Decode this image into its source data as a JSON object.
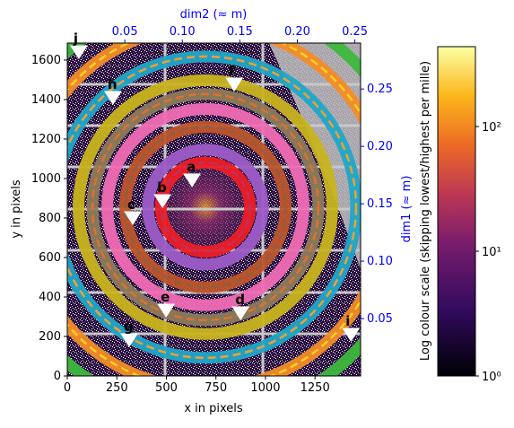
{
  "chart_data": {
    "type": "image",
    "xlabel": "x in pixels",
    "ylabel": "y in pixels",
    "x2label": "dim2 (≈ m)",
    "y2label": "dim1 (≈ m)",
    "colorbar_label": "Log colour scale (skipping lowest/highest per mille)",
    "xlim": [
      0,
      1480
    ],
    "ylim": [
      0,
      1686
    ],
    "xticks": [
      0,
      250,
      500,
      750,
      1000,
      1250
    ],
    "yticks": [
      0,
      200,
      400,
      600,
      800,
      1000,
      1200,
      1400,
      1600
    ],
    "x2lim": [
      0.0,
      0.255
    ],
    "x2ticks": [
      0.05,
      0.1,
      0.15,
      0.2,
      0.25
    ],
    "y2lim": [
      0.0,
      0.29
    ],
    "y2ticks": [
      0.05,
      0.1,
      0.15,
      0.2,
      0.25
    ],
    "secondary_color": "#0000ff",
    "clim": [
      1,
      437
    ],
    "log_colorbar": true,
    "cticks": [
      {
        "value": 1,
        "label": "10⁰"
      },
      {
        "value": 10,
        "label": "10¹"
      },
      {
        "value": 100,
        "label": "10²"
      }
    ],
    "center": [
      697,
      855
    ],
    "rings": [
      {
        "r": 1050,
        "color": "#3cb83c"
      },
      {
        "r": 915,
        "color": "#f28c28",
        "dash": "#f5d020"
      },
      {
        "r": 760,
        "color": "#1fa7c9",
        "dash": "#f0a030"
      },
      {
        "r": 640,
        "color": "#c8b41e"
      },
      {
        "r": 570,
        "color": "#8c7b5a",
        "dash": "#e07030"
      },
      {
        "r": 495,
        "color": "#f06cb4"
      },
      {
        "r": 405,
        "color": "#c0552a",
        "dash": "#8c6040"
      },
      {
        "r": 290,
        "color": "#9c5cc8"
      },
      {
        "r": 225,
        "color": "#ee1c24",
        "dash": "#c03060"
      }
    ],
    "annotations": [
      {
        "text": "a",
        "x": 625,
        "y": 1041
      },
      {
        "text": "b",
        "x": 476,
        "y": 936
      },
      {
        "text": "c",
        "x": 326,
        "y": 850
      },
      {
        "text": "d",
        "x": 870,
        "y": 368
      },
      {
        "text": "e",
        "x": 494,
        "y": 382
      },
      {
        "text": "f",
        "x": 838,
        "y": 1527
      },
      {
        "text": "g",
        "x": 308,
        "y": 232
      },
      {
        "text": "h",
        "x": 226,
        "y": 1459
      },
      {
        "text": "i",
        "x": 1427,
        "y": 259
      },
      {
        "text": "j",
        "x": 54,
        "y": 1690
      }
    ]
  }
}
